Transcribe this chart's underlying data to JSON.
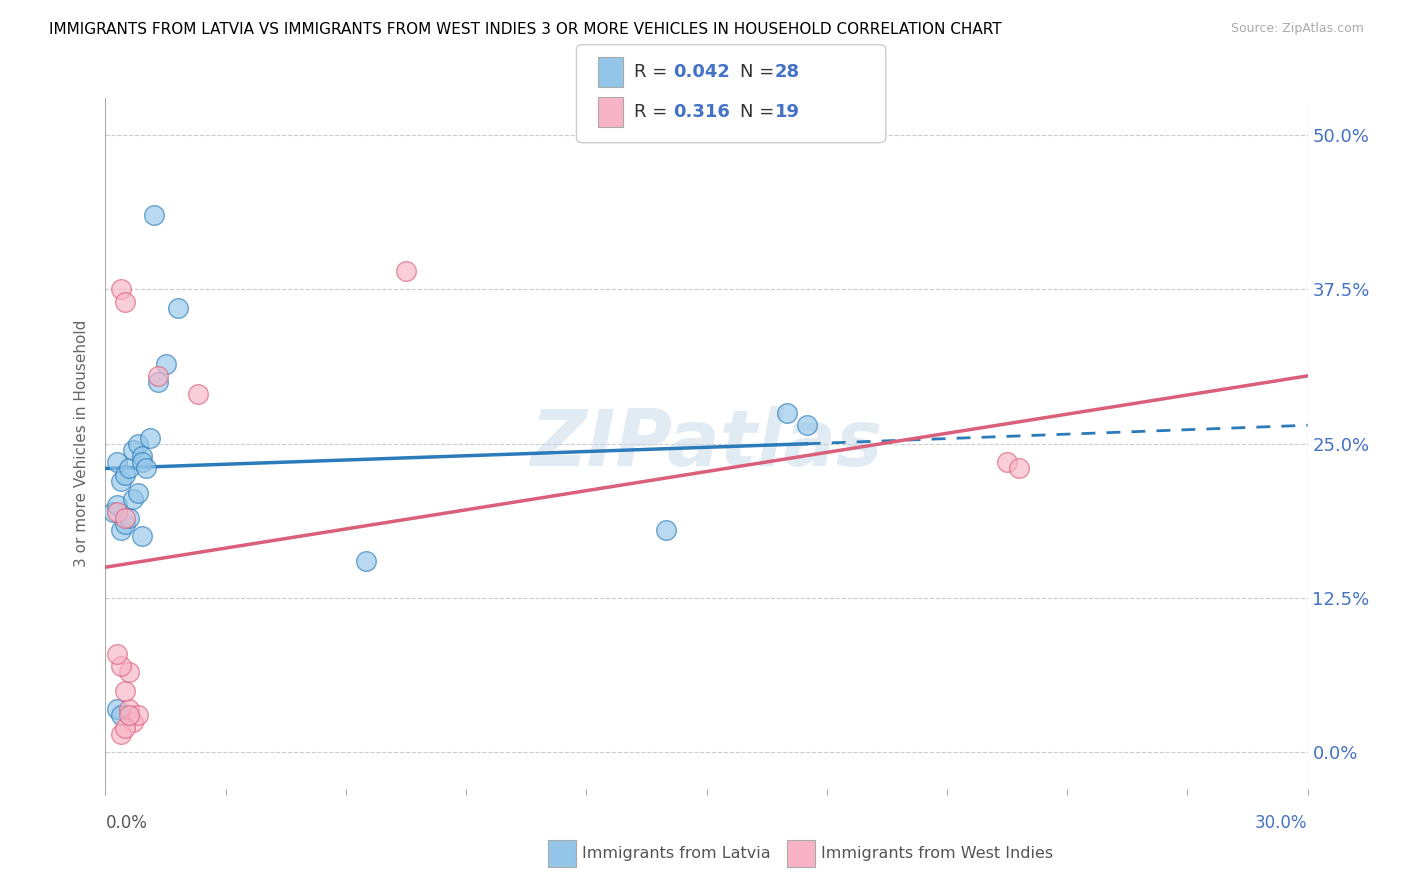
{
  "title": "IMMIGRANTS FROM LATVIA VS IMMIGRANTS FROM WEST INDIES 3 OR MORE VEHICLES IN HOUSEHOLD CORRELATION CHART",
  "source": "Source: ZipAtlas.com",
  "ylabel": "3 or more Vehicles in Household",
  "xlim": [
    0.0,
    30.0
  ],
  "ylim": [
    -3.0,
    53.0
  ],
  "yticks": [
    0.0,
    12.5,
    25.0,
    37.5,
    50.0
  ],
  "ytick_labels": [
    "0.0%",
    "12.5%",
    "25.0%",
    "37.5%",
    "50.0%"
  ],
  "legend_label1": "Immigrants from Latvia",
  "legend_label2": "Immigrants from West Indies",
  "blue_color": "#93c6e8",
  "pink_color": "#f8b4c6",
  "blue_line_color": "#2b7bba",
  "pink_line_color": "#d95f7a",
  "text_color": "#4472c4",
  "watermark": "ZIPatlas",
  "blue_scatter_x": [
    1.2,
    1.8,
    0.3,
    0.4,
    0.5,
    0.6,
    0.7,
    0.8,
    0.9,
    0.9,
    1.0,
    1.1,
    1.3,
    1.5,
    0.2,
    0.3,
    0.4,
    0.5,
    0.6,
    0.7,
    0.8,
    0.9,
    0.3,
    0.4,
    6.5,
    14.0,
    17.0,
    17.5
  ],
  "blue_scatter_y": [
    43.5,
    36.0,
    23.5,
    22.0,
    22.5,
    23.0,
    24.5,
    25.0,
    24.0,
    23.5,
    23.0,
    25.5,
    30.0,
    31.5,
    19.5,
    20.0,
    18.0,
    18.5,
    19.0,
    20.5,
    21.0,
    17.5,
    3.5,
    3.0,
    15.5,
    18.0,
    27.5,
    26.5
  ],
  "pink_scatter_x": [
    0.4,
    0.5,
    1.3,
    2.3,
    7.5,
    0.3,
    0.5,
    0.6,
    0.7,
    0.8,
    0.4,
    0.5,
    0.6,
    0.5,
    0.6,
    22.5,
    22.8,
    0.4,
    0.3
  ],
  "pink_scatter_y": [
    37.5,
    36.5,
    30.5,
    29.0,
    39.0,
    19.5,
    19.0,
    3.5,
    2.5,
    3.0,
    1.5,
    2.0,
    3.0,
    5.0,
    6.5,
    23.5,
    23.0,
    7.0,
    8.0
  ],
  "blue_line_x": [
    0.0,
    17.5,
    30.0
  ],
  "blue_line_y": [
    23.0,
    25.0,
    26.5
  ],
  "pink_line_x": [
    0.0,
    30.0
  ],
  "pink_line_y": [
    15.0,
    30.5
  ]
}
